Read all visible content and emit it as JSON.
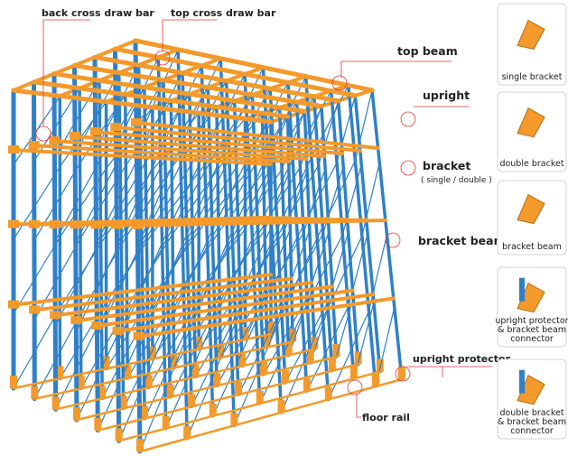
{
  "callouts": [
    {
      "label": "back cross draw bar"
    },
    {
      "label": "top cross draw bar"
    },
    {
      "label": "top beam"
    },
    {
      "label": "upright"
    },
    {
      "label": "bracket",
      "note": "( single / double )"
    },
    {
      "label": "bracket beam"
    },
    {
      "label": "upright protector"
    },
    {
      "label": "floor rail"
    }
  ],
  "parts": [
    {
      "lines": [
        "single bracket"
      ]
    },
    {
      "lines": [
        "double bracket"
      ]
    },
    {
      "lines": [
        "bracket beam"
      ]
    },
    {
      "lines": [
        "upright protector",
        "& bracket beam",
        "connector"
      ]
    },
    {
      "lines": [
        "double bracket",
        "& bracket beam",
        "connector"
      ]
    }
  ]
}
